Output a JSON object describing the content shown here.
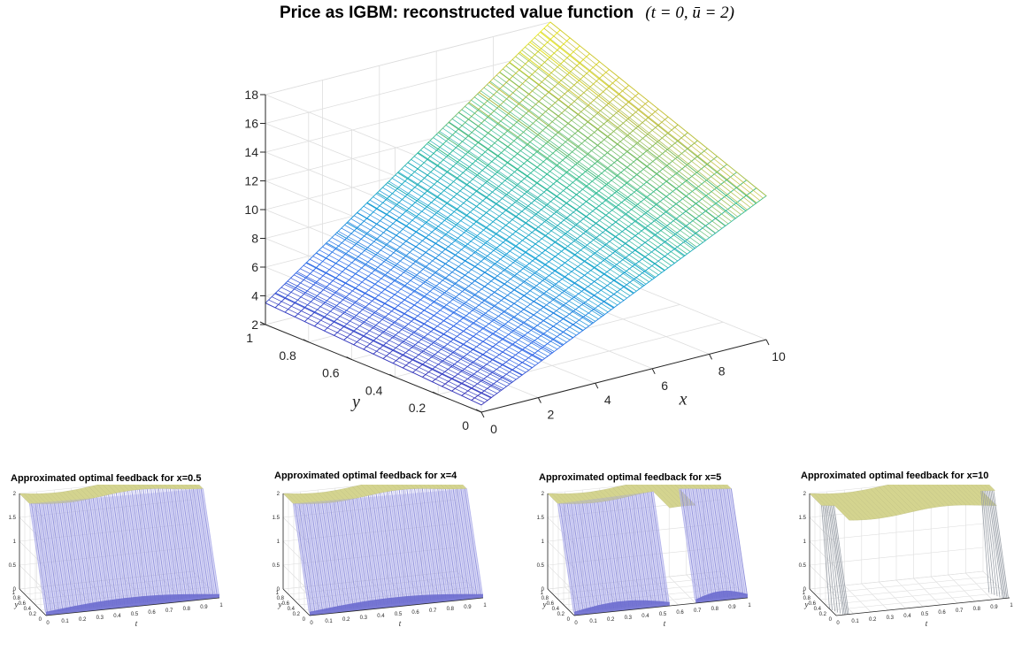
{
  "title": {
    "text": "Price as IGBM: reconstructed value function",
    "math": "(t = 0, ū = 2)"
  },
  "chart_data": [
    {
      "type": "surface",
      "title": "Price as IGBM: reconstructed value function (t = 0, ū = 2)",
      "xlabel": "x",
      "ylabel": "y",
      "zlabel": "",
      "xlim": [
        0,
        10
      ],
      "ylim": [
        0,
        1
      ],
      "zlim": [
        2,
        18
      ],
      "xticks": [
        "0",
        "2",
        "4",
        "6",
        "8",
        "10"
      ],
      "yticks": [
        "0",
        "0.2",
        "0.4",
        "0.6",
        "0.8",
        "1"
      ],
      "zticks": [
        "2",
        "4",
        "6",
        "8",
        "10",
        "12",
        "14",
        "16",
        "18"
      ],
      "grid": true,
      "colormap": "parula",
      "corner_values": [
        {
          "x": 0,
          "y": 0,
          "z": 2.5
        },
        {
          "x": 0,
          "y": 1,
          "z": 3.5
        },
        {
          "x": 10,
          "y": 1,
          "z": 18
        },
        {
          "x": 10,
          "y": 0,
          "z": 12
        }
      ]
    },
    {
      "type": "surface",
      "title": "Approximated optimal feedback for x=0.5",
      "xlabel": "t",
      "ylabel": "y",
      "zlabel": "",
      "xlim": [
        0,
        1
      ],
      "ylim": [
        0,
        1
      ],
      "zlim": [
        0,
        2
      ],
      "xticks": [
        "0",
        "0.1",
        "0.2",
        "0.3",
        "0.4",
        "0.5",
        "0.6",
        "0.7",
        "0.8",
        "0.9",
        "1"
      ],
      "yticks": [
        "0",
        "0.2",
        "0.4",
        "0.6",
        "0.8",
        "1"
      ],
      "zticks": [
        "0",
        "0.5",
        "1",
        "1.5",
        "2"
      ],
      "top_value": 2,
      "bottom_value": 0,
      "switch_intervals": [
        [
          0.0,
          1.0
        ]
      ]
    },
    {
      "type": "surface",
      "title": "Approximated optimal feedback for x=4",
      "xlabel": "t",
      "ylabel": "y",
      "zlabel": "",
      "xlim": [
        0,
        1
      ],
      "ylim": [
        0,
        1
      ],
      "zlim": [
        0,
        2
      ],
      "xticks": [
        "0",
        "0.1",
        "0.2",
        "0.3",
        "0.4",
        "0.5",
        "0.6",
        "0.7",
        "0.8",
        "0.9",
        "1"
      ],
      "yticks": [
        "0",
        "0.2",
        "0.4",
        "0.6",
        "0.8",
        "1"
      ],
      "zticks": [
        "0",
        "0.5",
        "1",
        "1.5",
        "2"
      ],
      "top_value": 2,
      "bottom_value": 0,
      "switch_intervals": [
        [
          0.0,
          1.0
        ]
      ]
    },
    {
      "type": "surface",
      "title": "Approximated optimal feedback for x=5",
      "xlabel": "t",
      "ylabel": "y",
      "zlabel": "",
      "xlim": [
        0,
        1
      ],
      "ylim": [
        0,
        1
      ],
      "zlim": [
        0,
        2
      ],
      "xticks": [
        "0",
        "0.1",
        "0.2",
        "0.3",
        "0.4",
        "0.5",
        "0.6",
        "0.7",
        "0.8",
        "0.9",
        "1"
      ],
      "yticks": [
        "0",
        "0.2",
        "0.4",
        "0.6",
        "0.8",
        "1"
      ],
      "zticks": [
        "0",
        "0.5",
        "1",
        "1.5",
        "2"
      ],
      "top_value": 2,
      "bottom_value": 0,
      "switch_intervals": [
        [
          0.0,
          0.55
        ],
        [
          0.7,
          1.0
        ]
      ]
    },
    {
      "type": "surface",
      "title": "Approximated optimal feedback for x=10",
      "xlabel": "t",
      "ylabel": "y",
      "zlabel": "",
      "xlim": [
        0,
        1
      ],
      "ylim": [
        0,
        1
      ],
      "zlim": [
        0,
        2
      ],
      "xticks": [
        "0",
        "0.1",
        "0.2",
        "0.3",
        "0.4",
        "0.5",
        "0.6",
        "0.7",
        "0.8",
        "0.9",
        "1"
      ],
      "yticks": [
        "0",
        "0.2",
        "0.4",
        "0.6",
        "0.8",
        "1"
      ],
      "zticks": [
        "0",
        "0.5",
        "1",
        "1.5",
        "2"
      ],
      "top_value": 2,
      "bottom_value": 0,
      "switch_intervals": [
        [
          0.0,
          0.08
        ],
        [
          0.92,
          1.0
        ]
      ]
    }
  ],
  "colors": {
    "feedback_top": "#d4d48f",
    "feedback_wall": "#9d9de6",
    "feedback_floor": "#6b6bcf",
    "feedback_edge_x10": "#9aa0a8",
    "grid": "#dedede",
    "axis": "#262626"
  }
}
